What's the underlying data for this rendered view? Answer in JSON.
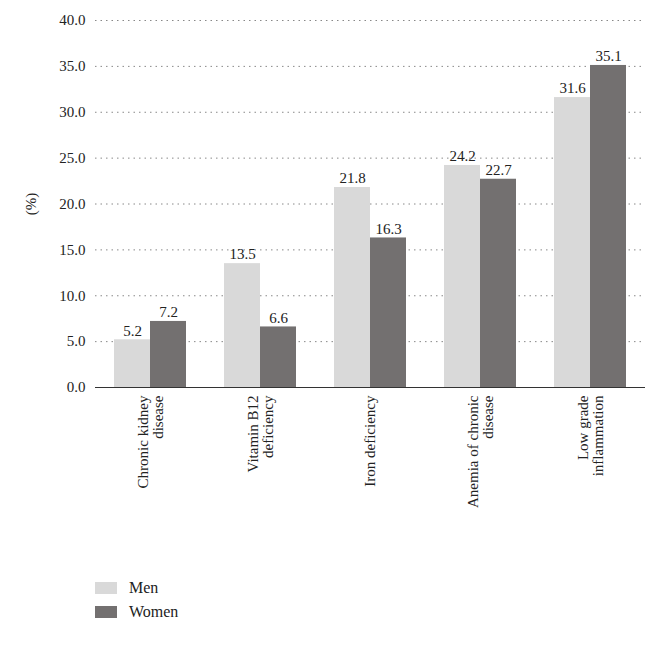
{
  "chart_data": {
    "type": "bar",
    "y_label": "(%)",
    "categories": [
      "Chronic kidney disease",
      "Vitamin B12 deficiency",
      "Iron deficiency",
      "Anemia of chronic disease",
      "Low grade inflammation"
    ],
    "series": [
      {
        "name": "Men",
        "color": "#d9d9d9",
        "values": [
          5.2,
          13.5,
          21.8,
          24.2,
          31.6
        ]
      },
      {
        "name": "Women",
        "color": "#737070",
        "values": [
          7.2,
          6.6,
          16.3,
          22.7,
          35.1
        ]
      }
    ],
    "ylim": [
      0,
      40
    ],
    "yticks": [
      {
        "value": 0,
        "label": "0.0"
      },
      {
        "value": 5,
        "label": "5.0"
      },
      {
        "value": 10,
        "label": "10.0"
      },
      {
        "value": 15,
        "label": "15.0"
      },
      {
        "value": 20,
        "label": "20.0"
      },
      {
        "value": 25,
        "label": "25.0"
      },
      {
        "value": 30,
        "label": "30.0"
      },
      {
        "value": 35,
        "label": "35.0"
      },
      {
        "value": 40,
        "label": "40.0"
      }
    ],
    "grid": true,
    "data_labels": true,
    "legend": "bottom-left"
  }
}
